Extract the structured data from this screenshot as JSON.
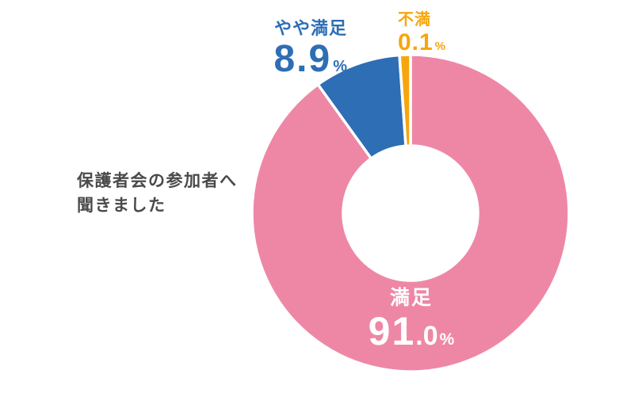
{
  "page": {
    "background": "#FFFFFF"
  },
  "caption": {
    "line1": "保護者会の参加者へ",
    "line2": "聞きました",
    "color": "#4A4A4A"
  },
  "labels": {
    "satisfied": {
      "title": "満足",
      "big": "91",
      "small": ".0",
      "unit": "%"
    },
    "somewhat": {
      "title": "やや満足",
      "big": "8.9",
      "unit": "%"
    },
    "dissatisfied": {
      "title": "不満",
      "big": "0.1",
      "unit": "%"
    }
  },
  "chart_data": {
    "type": "pie",
    "subtype": "donut",
    "title": "保護者会の参加者へ聞きました",
    "unit": "%",
    "start_angle": "12-oclock",
    "direction": "clockwise",
    "inner_radius_ratio": 0.425,
    "gap_color": "#FFFFFF",
    "segments": [
      {
        "id": "satisfied",
        "label": "満足",
        "value": 91.0,
        "display": "91.0%",
        "color": "#EE87A6",
        "label_color": "#FFFFFF"
      },
      {
        "id": "somewhat-satisfied",
        "label": "やや満足",
        "value": 8.9,
        "display": "8.9%",
        "color": "#2D6EB4",
        "label_color": "#2D6EB4"
      },
      {
        "id": "dissatisfied",
        "label": "不満",
        "value": 0.1,
        "display": "0.1%",
        "color": "#F6A60D",
        "label_color": "#F6A60D"
      }
    ]
  }
}
